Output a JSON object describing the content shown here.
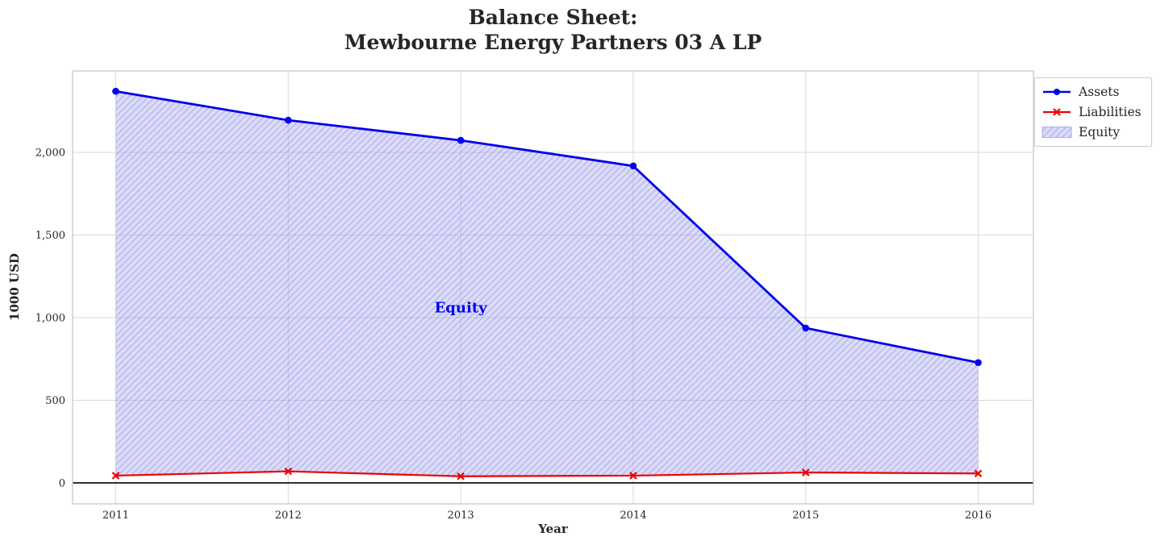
{
  "chart_data": {
    "type": "area",
    "title_line1": "Balance Sheet:",
    "title_line2": "Mewbourne Energy Partners 03 A LP",
    "xlabel": "Year",
    "ylabel": "1000 USD",
    "x": [
      2011,
      2012,
      2013,
      2014,
      2015,
      2016
    ],
    "series": [
      {
        "name": "Assets",
        "values": [
          2370,
          2195,
          2073,
          1918,
          937,
          728
        ],
        "color": "#0000ee",
        "marker": "circle"
      },
      {
        "name": "Liabilities",
        "values": [
          44,
          70,
          40,
          44,
          63,
          57
        ],
        "color": "#ee0000",
        "marker": "x"
      }
    ],
    "fill": {
      "name": "Equity",
      "between": [
        "Liabilities",
        "Assets"
      ],
      "facecolor": "#b0b0f0",
      "hatch_color": "#7070e0",
      "alpha": 0.45,
      "hatch": "///"
    },
    "xlim": [
      2010.75,
      2016.32
    ],
    "ylim": [
      -127,
      2493
    ],
    "xticks": {
      "values": [
        2011,
        2012,
        2013,
        2014,
        2015,
        2016
      ],
      "labels": [
        "2011",
        "2012",
        "2013",
        "2014",
        "2015",
        "2016"
      ]
    },
    "yticks": {
      "values": [
        0,
        500,
        1000,
        1500,
        2000
      ],
      "labels": [
        "0",
        "500",
        "1,000",
        "1,500",
        "2,000"
      ]
    },
    "annotation": {
      "text": "Equity",
      "x": 2013,
      "y": 1060,
      "color": "#0000ee"
    },
    "legend_position": "upper right outside",
    "grid": true,
    "grid_color": "#d8d8d8",
    "zero_line": true,
    "zero_line_color": "#000000"
  }
}
